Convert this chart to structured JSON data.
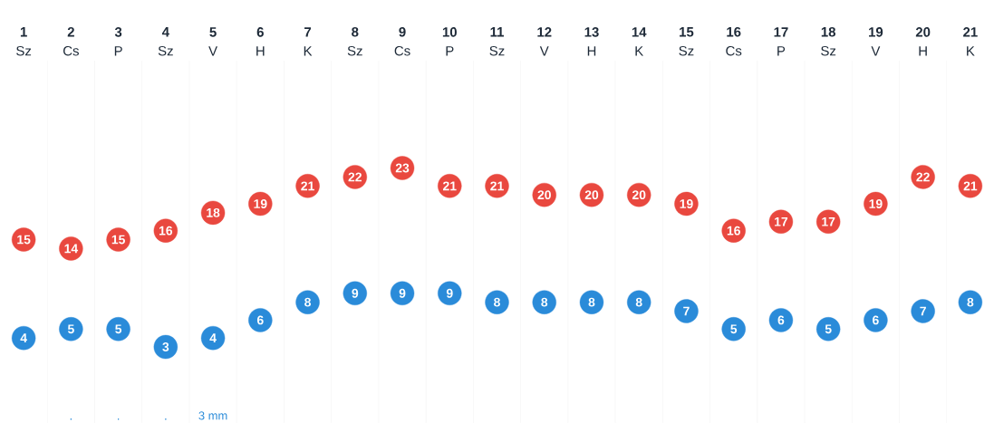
{
  "chart_data": {
    "type": "scatter",
    "categories": [
      "**1** Sz",
      "**2** Cs",
      "**3** P",
      "**4** Sz",
      "**5** V",
      "**6** H",
      "**7** K",
      "**8** Sz",
      "**9** Cs",
      "**10** P",
      "**11** Sz",
      "**12** V",
      "**13** H",
      "**14** K",
      "**15** Sz",
      "**16** Cs",
      "**17** P",
      "**18** Sz",
      "**19** V",
      "**20** H",
      "**21** K"
    ],
    "series": [
      {
        "color": "#e9483f",
        "values": [
          15,
          14,
          15,
          16,
          18,
          19,
          21,
          22,
          23,
          21,
          21,
          20,
          20,
          20,
          19,
          16,
          17,
          17,
          19,
          22,
          21
        ]
      },
      {
        "color": "#2a8bd9",
        "values": [
          4,
          5,
          5,
          3,
          4,
          6,
          8,
          9,
          9,
          9,
          8,
          8,
          8,
          8,
          7,
          5,
          6,
          5,
          6,
          7,
          8
        ]
      }
    ],
    "tick_labels": "x",
    "data_labels": true,
    "marker": "circle",
    "annotations": [
      ".",
      ".",
      ".",
      "3 mm"
    ]
  }
}
